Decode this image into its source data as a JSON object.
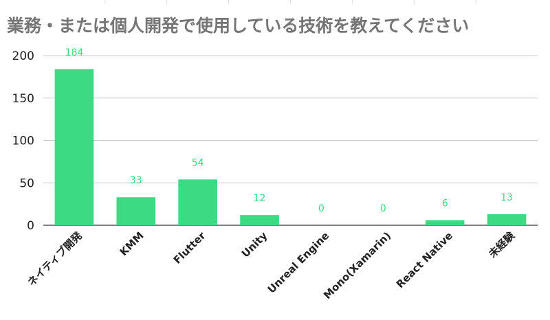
{
  "chart_data": {
    "type": "bar",
    "title": "業務・または個人開発で使用している技術を教えてください",
    "categories": [
      "ネイティブ開発",
      "KMM",
      "Flutter",
      "Unity",
      "Unreal Engine",
      "Mono(Xamarin)",
      "React Native",
      "未経験"
    ],
    "values": [
      184,
      33,
      54,
      12,
      0,
      0,
      6,
      13
    ],
    "ylim": [
      0,
      200
    ],
    "yticks": [
      0,
      50,
      100,
      150,
      200
    ],
    "grid": true,
    "legend": "none",
    "colors": {
      "bar": "#3cdb83",
      "label": "#3cdb83",
      "grid": "#cccccc",
      "axis": "#333333"
    }
  }
}
